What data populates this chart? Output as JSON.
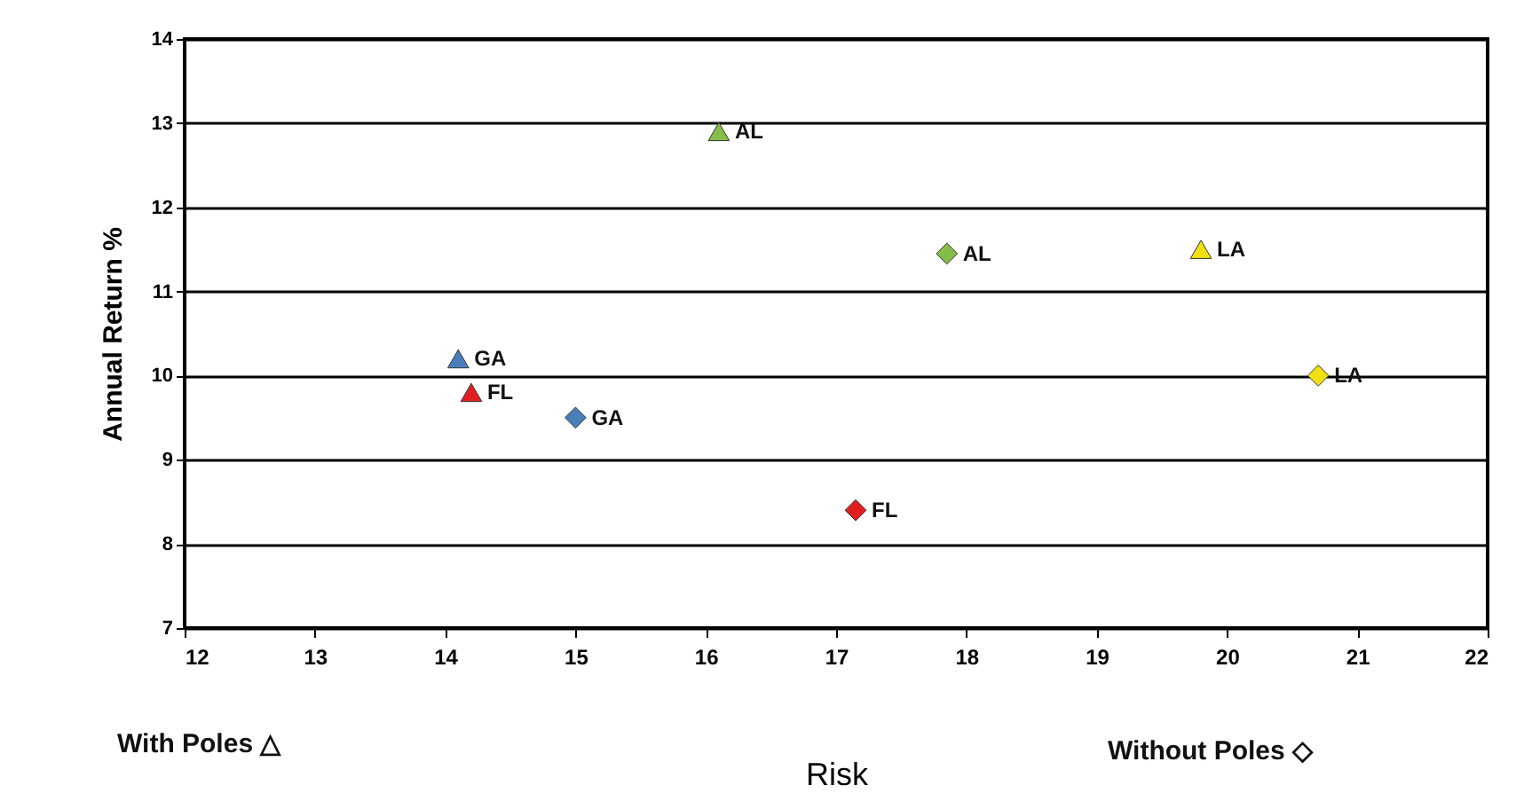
{
  "chart_data": {
    "type": "scatter",
    "xlabel": "Risk",
    "ylabel": "Annual Return %",
    "xlim": [
      12,
      22
    ],
    "xticks": [
      12,
      13,
      14,
      15,
      16,
      17,
      18,
      19,
      20,
      21,
      22
    ],
    "ylim": [
      7,
      14
    ],
    "yticks": [
      7,
      8,
      9,
      10,
      11,
      12,
      13,
      14
    ],
    "grid": "y",
    "series": [
      {
        "name": "AL",
        "color": "#86bd4a",
        "marker": "triangle",
        "x": [
          16.1
        ],
        "values": [
          12.9
        ]
      },
      {
        "name": "LA",
        "color": "#f0e010",
        "marker": "triangle",
        "x": [
          19.8
        ],
        "values": [
          11.5
        ]
      },
      {
        "name": "GA",
        "color": "#4a7ebb",
        "marker": "triangle",
        "x": [
          14.1
        ],
        "values": [
          10.2
        ]
      },
      {
        "name": "FL",
        "color": "#e02020",
        "marker": "triangle",
        "x": [
          14.2
        ],
        "values": [
          9.8
        ]
      },
      {
        "name": "AL",
        "color": "#86bd4a",
        "marker": "diamond",
        "x": [
          17.85
        ],
        "values": [
          11.45
        ]
      },
      {
        "name": "LA",
        "color": "#f0e010",
        "marker": "diamond",
        "x": [
          20.7
        ],
        "values": [
          10.0
        ]
      },
      {
        "name": "GA",
        "color": "#4a7ebb",
        "marker": "diamond",
        "x": [
          15.0
        ],
        "values": [
          9.5
        ]
      },
      {
        "name": "FL",
        "color": "#e02020",
        "marker": "diamond",
        "x": [
          17.15
        ],
        "values": [
          8.4
        ]
      }
    ],
    "annotations": [
      "With Poles △",
      "Without Poles ◇"
    ]
  }
}
